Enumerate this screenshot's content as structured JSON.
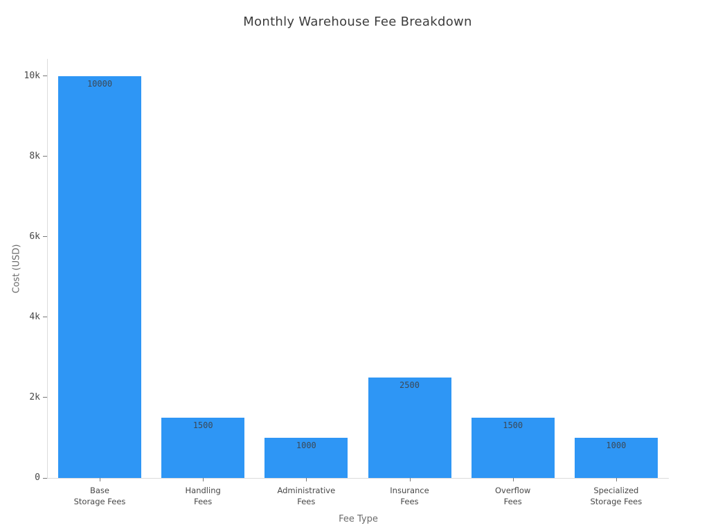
{
  "chart_data": {
    "type": "bar",
    "title": "Monthly Warehouse Fee Breakdown",
    "xlabel": "Fee Type",
    "ylabel": "Cost (USD)",
    "categories": [
      [
        "Base",
        "Storage Fees"
      ],
      [
        "Handling",
        "Fees"
      ],
      [
        "Administrative",
        "Fees"
      ],
      [
        "Insurance",
        "Fees"
      ],
      [
        "Overflow",
        "Fees"
      ],
      [
        "Specialized",
        "Storage Fees"
      ]
    ],
    "values": [
      10000,
      1500,
      1000,
      2500,
      1500,
      1000
    ],
    "bar_labels": [
      "10000",
      "1500",
      "1000",
      "2500",
      "1500",
      "1000"
    ],
    "yticks": [
      {
        "value": 0,
        "label": "0"
      },
      {
        "value": 2000,
        "label": "2k"
      },
      {
        "value": 4000,
        "label": "4k"
      },
      {
        "value": 6000,
        "label": "6k"
      },
      {
        "value": 8000,
        "label": "8k"
      },
      {
        "value": 10000,
        "label": "10k"
      }
    ],
    "ylim": [
      0,
      10430
    ],
    "grid": false,
    "legend": null,
    "colors": {
      "bar": "#2E96F5",
      "spine": "#DBDBDB",
      "tick": "#777777",
      "tick_label": "#474747",
      "bar_label": "#3B4856",
      "title": "#3C3C3C",
      "axis_title": "#6B6B6B"
    }
  }
}
